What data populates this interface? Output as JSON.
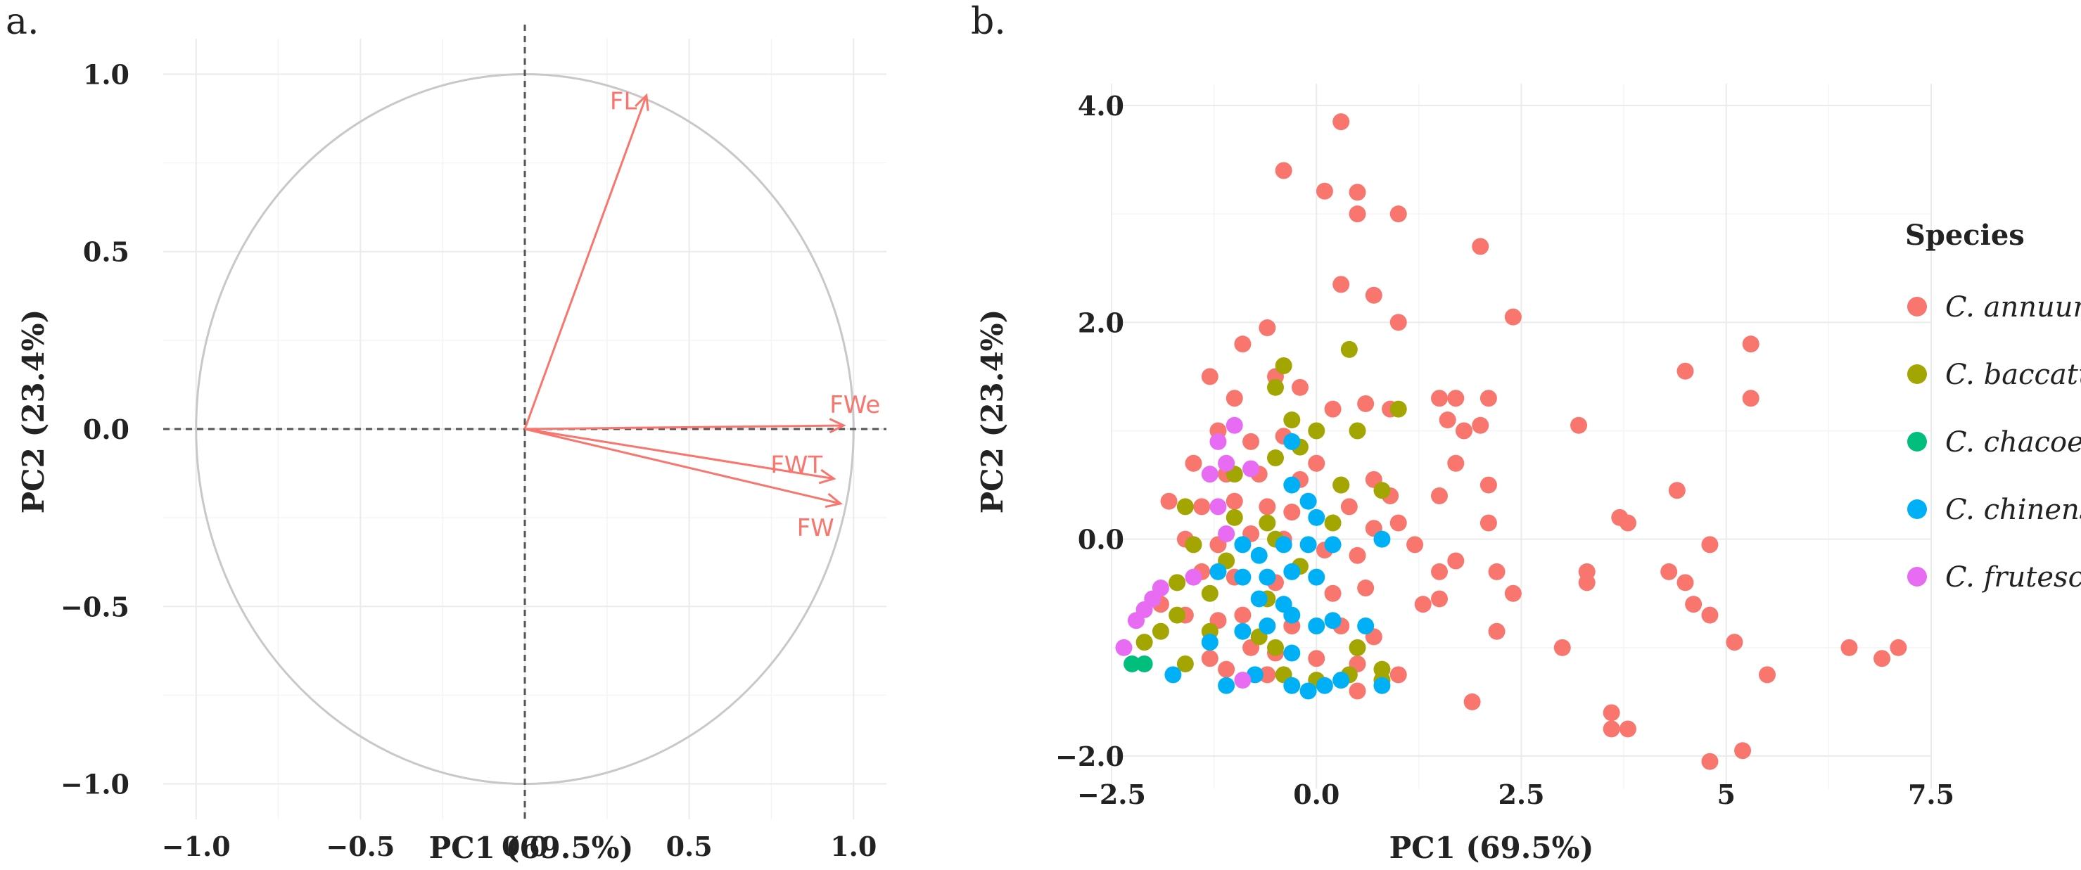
{
  "chart_data": [
    {
      "panel": "a.",
      "type": "pca-variable-correlation-circle",
      "xlabel": "PC1 (69.5%)",
      "ylabel": "PC2 (23.4%)",
      "xlim": [
        -1.1,
        1.1
      ],
      "ylim": [
        -1.1,
        1.1
      ],
      "xticks": [
        -1.0,
        -0.5,
        0.0,
        0.5,
        1.0
      ],
      "yticks": [
        -1.0,
        -0.5,
        0.0,
        0.5,
        1.0
      ],
      "xtick_labels": [
        "−1.0",
        "−0.5",
        "0.0",
        "0.5",
        "1.0"
      ],
      "ytick_labels": [
        "−1.0",
        "−0.5",
        "0.0",
        "0.5",
        "1.0"
      ],
      "vectors": [
        {
          "name": "FL",
          "x": 0.37,
          "y": 0.94
        },
        {
          "name": "FWe",
          "x": 0.97,
          "y": 0.01
        },
        {
          "name": "FWT",
          "x": 0.94,
          "y": -0.14
        },
        {
          "name": "FW",
          "x": 0.96,
          "y": -0.21
        }
      ],
      "color": "#f8766d"
    },
    {
      "panel": "b.",
      "type": "scatter",
      "xlabel": "PC1 (69.5%)",
      "ylabel": "PC2 (23.4%)",
      "xlim": [
        -2.5,
        7.5
      ],
      "ylim": [
        -2.3,
        4.2
      ],
      "xticks": [
        -2.5,
        0.0,
        2.5,
        5,
        7.5
      ],
      "yticks": [
        -2.0,
        0.0,
        2.0,
        4.0
      ],
      "xtick_labels": [
        "−2.5",
        "0.0",
        "2.5",
        "5",
        "7.5"
      ],
      "ytick_labels": [
        "−2.0",
        "0.0",
        "2.0",
        "4.0"
      ],
      "legend": {
        "title": "Species",
        "position": "right"
      },
      "series": [
        {
          "name": "C. annuum",
          "color": "#f8766d",
          "points": [
            [
              -0.4,
              3.4
            ],
            [
              0.3,
              3.85
            ],
            [
              0.1,
              3.21
            ],
            [
              0.5,
              3.2
            ],
            [
              0.5,
              3.0
            ],
            [
              1.0,
              3.0
            ],
            [
              2.0,
              2.7
            ],
            [
              0.3,
              2.35
            ],
            [
              0.7,
              2.25
            ],
            [
              2.4,
              2.05
            ],
            [
              1.0,
              2.0
            ],
            [
              5.3,
              1.8
            ],
            [
              4.5,
              1.55
            ],
            [
              5.3,
              1.3
            ],
            [
              -0.6,
              1.95
            ],
            [
              -0.9,
              1.8
            ],
            [
              -1.3,
              1.5
            ],
            [
              -0.5,
              1.5
            ],
            [
              -1.0,
              1.3
            ],
            [
              -0.2,
              1.4
            ],
            [
              0.2,
              1.2
            ],
            [
              0.6,
              1.25
            ],
            [
              0.9,
              1.2
            ],
            [
              1.5,
              1.3
            ],
            [
              1.7,
              1.3
            ],
            [
              2.1,
              1.3
            ],
            [
              1.6,
              1.1
            ],
            [
              2.0,
              1.05
            ],
            [
              1.8,
              1.0
            ],
            [
              3.2,
              1.05
            ],
            [
              -1.2,
              1.0
            ],
            [
              -0.8,
              0.9
            ],
            [
              -0.4,
              0.95
            ],
            [
              0.0,
              0.7
            ],
            [
              0.3,
              0.5
            ],
            [
              0.7,
              0.55
            ],
            [
              -1.5,
              0.7
            ],
            [
              -1.1,
              0.6
            ],
            [
              -0.7,
              0.6
            ],
            [
              -0.2,
              0.55
            ],
            [
              0.9,
              0.4
            ],
            [
              1.5,
              0.4
            ],
            [
              1.7,
              0.7
            ],
            [
              2.1,
              0.5
            ],
            [
              4.4,
              0.45
            ],
            [
              -1.8,
              0.35
            ],
            [
              -1.4,
              0.3
            ],
            [
              -1.0,
              0.35
            ],
            [
              -0.6,
              0.3
            ],
            [
              -0.3,
              0.25
            ],
            [
              0.4,
              0.3
            ],
            [
              0.7,
              0.1
            ],
            [
              1.0,
              0.15
            ],
            [
              2.1,
              0.15
            ],
            [
              3.7,
              0.2
            ],
            [
              3.8,
              0.15
            ],
            [
              -1.6,
              0.0
            ],
            [
              -1.2,
              -0.05
            ],
            [
              -0.8,
              0.05
            ],
            [
              -0.4,
              0.0
            ],
            [
              0.1,
              -0.1
            ],
            [
              0.5,
              -0.15
            ],
            [
              1.2,
              -0.05
            ],
            [
              1.5,
              -0.3
            ],
            [
              1.7,
              -0.2
            ],
            [
              2.2,
              -0.3
            ],
            [
              3.3,
              -0.3
            ],
            [
              3.3,
              -0.4
            ],
            [
              4.8,
              -0.05
            ],
            [
              -1.7,
              -0.4
            ],
            [
              -1.4,
              -0.3
            ],
            [
              -1.0,
              -0.35
            ],
            [
              -0.5,
              -0.4
            ],
            [
              0.2,
              -0.5
            ],
            [
              0.6,
              -0.45
            ],
            [
              1.3,
              -0.6
            ],
            [
              1.5,
              -0.55
            ],
            [
              2.4,
              -0.5
            ],
            [
              4.3,
              -0.3
            ],
            [
              4.5,
              -0.4
            ],
            [
              4.6,
              -0.6
            ],
            [
              -1.9,
              -0.6
            ],
            [
              -1.6,
              -0.7
            ],
            [
              -1.2,
              -0.75
            ],
            [
              -0.9,
              -0.7
            ],
            [
              -0.3,
              -0.8
            ],
            [
              0.3,
              -0.8
            ],
            [
              0.7,
              -0.9
            ],
            [
              2.2,
              -0.85
            ],
            [
              4.8,
              -0.7
            ],
            [
              5.1,
              -0.95
            ],
            [
              -1.3,
              -1.1
            ],
            [
              -0.8,
              -1.0
            ],
            [
              -0.5,
              -1.05
            ],
            [
              0.0,
              -1.1
            ],
            [
              0.5,
              -1.15
            ],
            [
              1.0,
              -1.25
            ],
            [
              3.0,
              -1.0
            ],
            [
              6.5,
              -1.0
            ],
            [
              6.9,
              -1.1
            ],
            [
              7.1,
              -1.0
            ],
            [
              5.5,
              -1.25
            ],
            [
              -1.1,
              -1.2
            ],
            [
              -0.6,
              -1.25
            ],
            [
              0.5,
              -1.4
            ],
            [
              1.9,
              -1.5
            ],
            [
              3.6,
              -1.6
            ],
            [
              3.6,
              -1.75
            ],
            [
              3.8,
              -1.75
            ],
            [
              5.2,
              -1.95
            ],
            [
              4.8,
              -2.05
            ]
          ]
        },
        {
          "name": "C. baccatum",
          "color": "#a3a500",
          "points": [
            [
              0.4,
              1.75
            ],
            [
              -0.4,
              1.6
            ],
            [
              -0.5,
              1.4
            ],
            [
              -0.3,
              1.1
            ],
            [
              0.0,
              1.0
            ],
            [
              -0.2,
              0.85
            ],
            [
              -0.5,
              0.75
            ],
            [
              0.5,
              1.0
            ],
            [
              1.0,
              1.2
            ],
            [
              -1.0,
              0.6
            ],
            [
              0.3,
              0.5
            ],
            [
              0.8,
              0.45
            ],
            [
              -1.6,
              0.3
            ],
            [
              -1.0,
              0.2
            ],
            [
              -0.6,
              0.15
            ],
            [
              -0.5,
              0.0
            ],
            [
              0.2,
              0.15
            ],
            [
              -1.5,
              -0.05
            ],
            [
              -1.1,
              -0.2
            ],
            [
              -0.2,
              -0.25
            ],
            [
              -1.7,
              -0.4
            ],
            [
              -1.3,
              -0.5
            ],
            [
              -0.6,
              -0.55
            ],
            [
              -1.7,
              -0.7
            ],
            [
              -1.3,
              -0.85
            ],
            [
              -0.7,
              -0.9
            ],
            [
              -1.9,
              -0.85
            ],
            [
              -2.1,
              -0.95
            ],
            [
              -0.5,
              -1.0
            ],
            [
              0.5,
              -1.0
            ],
            [
              -1.6,
              -1.15
            ],
            [
              -0.4,
              -1.25
            ],
            [
              0.0,
              -1.3
            ],
            [
              0.3,
              -1.3
            ],
            [
              0.8,
              -1.2
            ],
            [
              0.8,
              -1.3
            ],
            [
              0.4,
              -1.25
            ]
          ]
        },
        {
          "name": "C. chacoense",
          "color": "#00bf7d",
          "points": [
            [
              -2.25,
              -1.15
            ],
            [
              -2.1,
              -1.15
            ]
          ]
        },
        {
          "name": "C. chinense",
          "color": "#00b0f6",
          "points": [
            [
              -0.3,
              0.9
            ],
            [
              -0.3,
              0.5
            ],
            [
              -0.1,
              0.35
            ],
            [
              0.0,
              0.2
            ],
            [
              -0.9,
              -0.05
            ],
            [
              -0.7,
              -0.15
            ],
            [
              -0.4,
              -0.05
            ],
            [
              -0.1,
              -0.05
            ],
            [
              0.2,
              -0.05
            ],
            [
              0.8,
              0.0
            ],
            [
              -1.2,
              -0.3
            ],
            [
              -0.9,
              -0.35
            ],
            [
              -0.6,
              -0.35
            ],
            [
              -0.3,
              -0.3
            ],
            [
              0.0,
              -0.35
            ],
            [
              -0.7,
              -0.55
            ],
            [
              -0.4,
              -0.6
            ],
            [
              -0.6,
              -0.8
            ],
            [
              -0.3,
              -0.7
            ],
            [
              0.0,
              -0.8
            ],
            [
              0.2,
              -0.75
            ],
            [
              0.6,
              -0.8
            ],
            [
              -0.9,
              -0.85
            ],
            [
              -1.3,
              -0.95
            ],
            [
              -0.3,
              -1.05
            ],
            [
              -1.75,
              -1.25
            ],
            [
              -0.75,
              -1.25
            ],
            [
              -1.1,
              -1.35
            ],
            [
              -0.3,
              -1.35
            ],
            [
              -0.1,
              -1.4
            ],
            [
              0.1,
              -1.35
            ],
            [
              0.3,
              -1.3
            ],
            [
              0.8,
              -1.35
            ]
          ]
        },
        {
          "name": "C. frutescens",
          "color": "#e76bf3",
          "points": [
            [
              -1.0,
              1.05
            ],
            [
              -1.2,
              0.9
            ],
            [
              -1.1,
              0.7
            ],
            [
              -0.8,
              0.65
            ],
            [
              -1.3,
              0.6
            ],
            [
              -1.2,
              0.3
            ],
            [
              -1.1,
              0.05
            ],
            [
              -1.5,
              -0.35
            ],
            [
              -1.9,
              -0.45
            ],
            [
              -2.0,
              -0.55
            ],
            [
              -2.1,
              -0.65
            ],
            [
              -2.2,
              -0.75
            ],
            [
              -2.35,
              -1.0
            ],
            [
              -0.9,
              -1.3
            ]
          ]
        }
      ]
    }
  ]
}
